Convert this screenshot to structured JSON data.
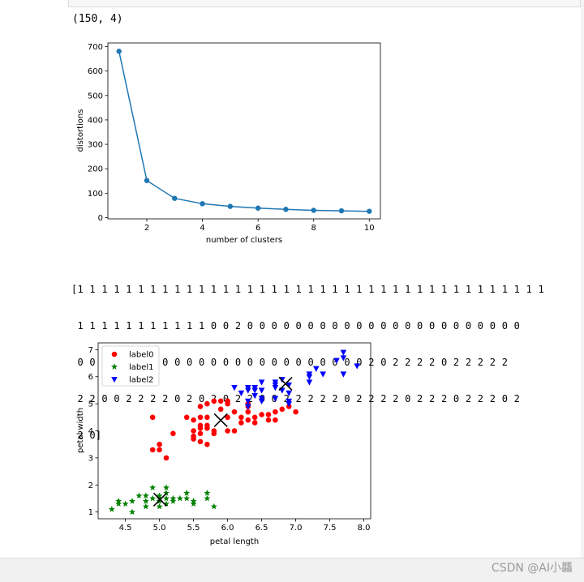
{
  "outputs": {
    "shape": "(150, 4)",
    "labels_array_lines": [
      "[1 1 1 1 1 1 1 1 1 1 1 1 1 1 1 1 1 1 1 1 1 1 1 1 1 1 1 1 1 1 1 1 1 1 1 1 1 1 1",
      " 1 1 1 1 1 1 1 1 1 1 1 0 0 2 0 0 0 0 0 0 0 0 0 0 0 0 0 0 0 0 0 0 0 0 0 0 0",
      " 0 0 0 2 0 0 0 0 0 0 0 0 0 0 0 0 0 0 0 0 0 0 0 0 2 0 2 2 2 2 0 2 2 2 2 2",
      " 2 2 0 0 2 2 2 2 0 2 0 2 0 2 2 0 0 2 2 2 2 2 0 2 2 2 2 0 2 2 2 0 2 2 2 0 2",
      " 2 0]"
    ]
  },
  "chart_data": [
    {
      "type": "line",
      "title": "",
      "xlabel": "number of clusters",
      "ylabel": "distortions",
      "xlim": [
        0.6,
        10.4
      ],
      "ylim": [
        -5,
        715
      ],
      "xticks": [
        2,
        4,
        6,
        8,
        10
      ],
      "yticks": [
        0,
        100,
        200,
        300,
        400,
        500,
        600,
        700
      ],
      "color": "#1f77b4",
      "marker": "o",
      "x": [
        1,
        2,
        3,
        4,
        5,
        6,
        7,
        8,
        9,
        10
      ],
      "y": [
        681,
        152,
        79,
        57,
        46,
        39,
        34,
        30,
        28,
        26
      ]
    },
    {
      "type": "scatter",
      "title": "",
      "xlabel": "petal length",
      "ylabel": "petal width",
      "xlim": [
        4.1,
        8.1
      ],
      "ylim": [
        0.75,
        7.25
      ],
      "xticks": [
        4.5,
        5.0,
        5.5,
        6.0,
        6.5,
        7.0,
        7.5,
        8.0
      ],
      "yticks": [
        1,
        2,
        3,
        4,
        5,
        6,
        7
      ],
      "legend_position": "top-left",
      "series": [
        {
          "name": "label0",
          "color": "#ff0000",
          "marker": "circle",
          "points": [
            [
              4.9,
              4.5
            ],
            [
              4.9,
              3.3
            ],
            [
              5.0,
              3.5
            ],
            [
              5.0,
              3.3
            ],
            [
              5.1,
              3.0
            ],
            [
              5.2,
              3.9
            ],
            [
              5.4,
              4.5
            ],
            [
              5.5,
              4.4
            ],
            [
              5.5,
              4.0
            ],
            [
              5.5,
              3.8
            ],
            [
              5.5,
              3.7
            ],
            [
              5.6,
              4.9
            ],
            [
              5.6,
              4.5
            ],
            [
              5.6,
              4.2
            ],
            [
              5.6,
              4.1
            ],
            [
              5.6,
              3.9
            ],
            [
              5.6,
              3.6
            ],
            [
              5.7,
              5.0
            ],
            [
              5.7,
              4.5
            ],
            [
              5.7,
              4.2
            ],
            [
              5.7,
              4.1
            ],
            [
              5.7,
              3.5
            ],
            [
              5.8,
              5.1
            ],
            [
              5.8,
              4.0
            ],
            [
              5.8,
              3.9
            ],
            [
              5.9,
              5.1
            ],
            [
              5.9,
              4.8
            ],
            [
              6.0,
              5.1
            ],
            [
              6.0,
              5.0
            ],
            [
              6.0,
              4.5
            ],
            [
              6.0,
              4.0
            ],
            [
              6.1,
              4.7
            ],
            [
              6.1,
              4.0
            ],
            [
              6.2,
              4.5
            ],
            [
              6.2,
              4.3
            ],
            [
              6.3,
              5.0
            ],
            [
              6.3,
              4.9
            ],
            [
              6.3,
              4.7
            ],
            [
              6.3,
              4.4
            ],
            [
              6.4,
              4.5
            ],
            [
              6.4,
              4.3
            ],
            [
              6.5,
              4.6
            ],
            [
              6.6,
              4.6
            ],
            [
              6.6,
              4.4
            ],
            [
              6.7,
              4.7
            ],
            [
              6.7,
              4.4
            ],
            [
              6.8,
              4.8
            ],
            [
              6.9,
              4.9
            ],
            [
              7.0,
              4.7
            ]
          ]
        },
        {
          "name": "label1",
          "color": "#008000",
          "marker": "star",
          "points": [
            [
              4.3,
              1.1
            ],
            [
              4.4,
              1.4
            ],
            [
              4.4,
              1.3
            ],
            [
              4.5,
              1.3
            ],
            [
              4.6,
              1.4
            ],
            [
              4.6,
              1.0
            ],
            [
              4.7,
              1.6
            ],
            [
              4.8,
              1.4
            ],
            [
              4.8,
              1.2
            ],
            [
              4.9,
              1.9
            ],
            [
              4.9,
              1.5
            ],
            [
              5.0,
              1.6
            ],
            [
              5.0,
              1.4
            ],
            [
              5.0,
              1.2
            ],
            [
              5.1,
              1.9
            ],
            [
              5.1,
              1.7
            ],
            [
              5.1,
              1.5
            ],
            [
              5.1,
              1.3
            ],
            [
              5.2,
              1.5
            ],
            [
              5.2,
              1.4
            ],
            [
              5.3,
              1.5
            ],
            [
              5.4,
              1.7
            ],
            [
              5.4,
              1.5
            ],
            [
              5.5,
              1.4
            ],
            [
              5.5,
              1.3
            ],
            [
              5.7,
              1.7
            ],
            [
              5.7,
              1.5
            ],
            [
              5.8,
              1.2
            ],
            [
              5.0,
              1.5
            ],
            [
              4.8,
              1.6
            ]
          ]
        },
        {
          "name": "label2",
          "color": "#0000ff",
          "marker": "triangle-down",
          "points": [
            [
              6.1,
              5.6
            ],
            [
              6.2,
              5.4
            ],
            [
              6.3,
              5.6
            ],
            [
              6.3,
              5.5
            ],
            [
              6.3,
              5.1
            ],
            [
              6.3,
              4.9
            ],
            [
              6.4,
              5.6
            ],
            [
              6.4,
              5.5
            ],
            [
              6.4,
              5.3
            ],
            [
              6.5,
              5.8
            ],
            [
              6.5,
              5.5
            ],
            [
              6.5,
              5.2
            ],
            [
              6.5,
              5.1
            ],
            [
              6.7,
              5.8
            ],
            [
              6.7,
              5.7
            ],
            [
              6.7,
              5.6
            ],
            [
              6.7,
              5.2
            ],
            [
              6.8,
              5.9
            ],
            [
              6.8,
              5.5
            ],
            [
              6.9,
              5.7
            ],
            [
              6.9,
              5.4
            ],
            [
              6.9,
              5.1
            ],
            [
              6.9,
              5.0
            ],
            [
              7.2,
              5.8
            ],
            [
              7.2,
              6.0
            ],
            [
              7.2,
              6.1
            ],
            [
              7.3,
              6.3
            ],
            [
              7.4,
              6.1
            ],
            [
              7.6,
              6.6
            ],
            [
              7.7,
              6.9
            ],
            [
              7.7,
              6.7
            ],
            [
              7.7,
              6.1
            ],
            [
              7.9,
              6.4
            ]
          ]
        }
      ],
      "centroids": [
        [
          5.9,
          4.39
        ],
        [
          5.01,
          1.46
        ],
        [
          6.85,
          5.74
        ]
      ]
    }
  ],
  "footer": {
    "watermark": "CSDN @AI小龘"
  }
}
